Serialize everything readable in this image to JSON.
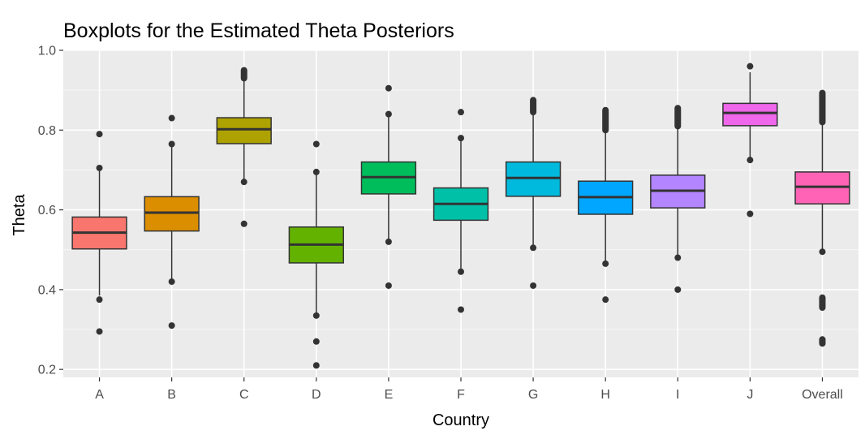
{
  "chart_data": {
    "type": "boxplot",
    "title": "Boxplots for the Estimated Theta Posteriors",
    "xlabel": "Country",
    "ylabel": "Theta",
    "ylim": [
      0.18,
      1.0
    ],
    "yticks": [
      0.2,
      0.4,
      0.6,
      0.8,
      1.0
    ],
    "ytick_labels": [
      "0.2",
      "0.4",
      "0.6",
      "0.8",
      "1.0"
    ],
    "grid": true,
    "legend": "none",
    "categories": [
      "A",
      "B",
      "C",
      "D",
      "E",
      "F",
      "G",
      "H",
      "I",
      "J",
      "Overall"
    ],
    "boxes": [
      {
        "category": "A",
        "color": "#F8766D",
        "whisker_low": 0.385,
        "q1": 0.502,
        "median": 0.543,
        "q3": 0.582,
        "whisker_high": 0.7,
        "outliers_low": [
          0.295,
          0.375
        ],
        "outliers_high": [
          0.705,
          0.79
        ]
      },
      {
        "category": "B",
        "color": "#DB8E00",
        "whisker_low": 0.425,
        "q1": 0.547,
        "median": 0.593,
        "q3": 0.633,
        "whisker_high": 0.76,
        "outliers_low": [
          0.31,
          0.42
        ],
        "outliers_high": [
          0.765,
          0.83
        ]
      },
      {
        "category": "C",
        "color": "#AEA200",
        "whisker_low": 0.675,
        "q1": 0.766,
        "median": 0.802,
        "q3": 0.831,
        "whisker_high": 0.925,
        "outliers_low": [
          0.565,
          0.67
        ],
        "outliers_high": [
          0.93,
          0.95
        ]
      },
      {
        "category": "D",
        "color": "#64B200",
        "whisker_low": 0.34,
        "q1": 0.467,
        "median": 0.513,
        "q3": 0.557,
        "whisker_high": 0.69,
        "outliers_low": [
          0.21,
          0.27,
          0.335
        ],
        "outliers_high": [
          0.695,
          0.765
        ]
      },
      {
        "category": "E",
        "color": "#00BD5C",
        "whisker_low": 0.525,
        "q1": 0.64,
        "median": 0.682,
        "q3": 0.72,
        "whisker_high": 0.835,
        "outliers_low": [
          0.41,
          0.52
        ],
        "outliers_high": [
          0.84,
          0.905
        ]
      },
      {
        "category": "F",
        "color": "#00C1A7",
        "whisker_low": 0.45,
        "q1": 0.574,
        "median": 0.615,
        "q3": 0.655,
        "whisker_high": 0.775,
        "outliers_low": [
          0.35,
          0.445
        ],
        "outliers_high": [
          0.78,
          0.845
        ]
      },
      {
        "category": "G",
        "color": "#00BADE",
        "whisker_low": 0.51,
        "q1": 0.634,
        "median": 0.68,
        "q3": 0.72,
        "whisker_high": 0.84,
        "outliers_low": [
          0.41,
          0.505
        ],
        "outliers_high": [
          0.845,
          0.875
        ]
      },
      {
        "category": "H",
        "color": "#00A6FF",
        "whisker_low": 0.47,
        "q1": 0.589,
        "median": 0.632,
        "q3": 0.672,
        "whisker_high": 0.795,
        "outliers_low": [
          0.375,
          0.465
        ],
        "outliers_high": [
          0.8,
          0.85
        ]
      },
      {
        "category": "I",
        "color": "#B385FF",
        "whisker_low": 0.485,
        "q1": 0.605,
        "median": 0.648,
        "q3": 0.687,
        "whisker_high": 0.805,
        "outliers_low": [
          0.4,
          0.48
        ],
        "outliers_high": [
          0.81,
          0.855
        ]
      },
      {
        "category": "J",
        "color": "#EF67EB",
        "whisker_low": 0.73,
        "q1": 0.811,
        "median": 0.843,
        "q3": 0.867,
        "whisker_high": 0.945,
        "outliers_low": [
          0.59,
          0.725
        ],
        "outliers_high": [
          0.96
        ]
      },
      {
        "category": "Overall",
        "color": "#FF63B6",
        "whisker_low": 0.5,
        "q1": 0.615,
        "median": 0.658,
        "q3": 0.695,
        "whisker_high": 0.815,
        "outliers_low": [
          0.265,
          0.275,
          0.355,
          0.38,
          0.495
        ],
        "outliers_high": [
          0.82,
          0.87,
          0.893
        ]
      }
    ]
  }
}
